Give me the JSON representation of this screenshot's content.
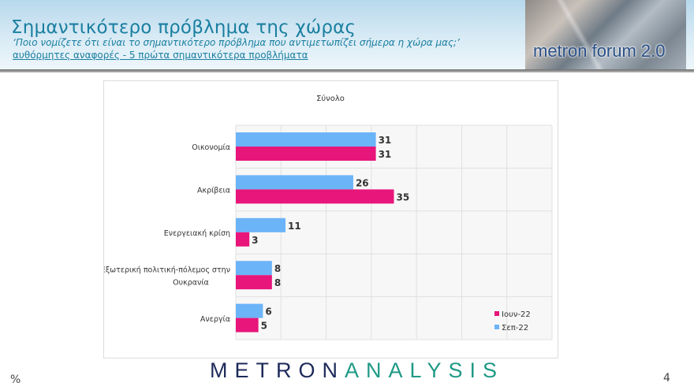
{
  "header": {
    "title": "Σημαντικότερο πρόβλημα της χώρας",
    "subtitle": "‘Ποιο νομίζετε ότι  είναι το σημαντικότερο πρόβλημα που αντιμετωπίζει σήμερα η χώρα μας;’",
    "note": "αυθόρμητες αναφορές - 5 πρώτα σημαντικότερα προβλήματα",
    "logo_text": "metron forum 2.0"
  },
  "chart_data": {
    "type": "bar",
    "orientation": "horizontal",
    "title": "Σύνολο",
    "categories": [
      "Οικονομία",
      "Ακρίβεια",
      "Ενεργειακή κρίση",
      "Εξωτερική πολιτική-πόλεμος στην Ουκρανία",
      "Ανεργία"
    ],
    "series": [
      {
        "name": "Σεπ-22",
        "color": "#6cb4f8",
        "values": [
          31,
          26,
          11,
          8,
          6
        ]
      },
      {
        "name": "Ιουν-22",
        "color": "#e8157a",
        "values": [
          31,
          35,
          3,
          8,
          5
        ]
      }
    ],
    "xlim": [
      0,
      70
    ],
    "grid": true,
    "legend": "bottom-right",
    "legend_order": [
      "Ιουν-22",
      "Σεπ-22"
    ]
  },
  "footer": {
    "brand_part1": "METRON",
    "brand_part2": "ANALYSIS",
    "unit": "%",
    "page": "4"
  }
}
